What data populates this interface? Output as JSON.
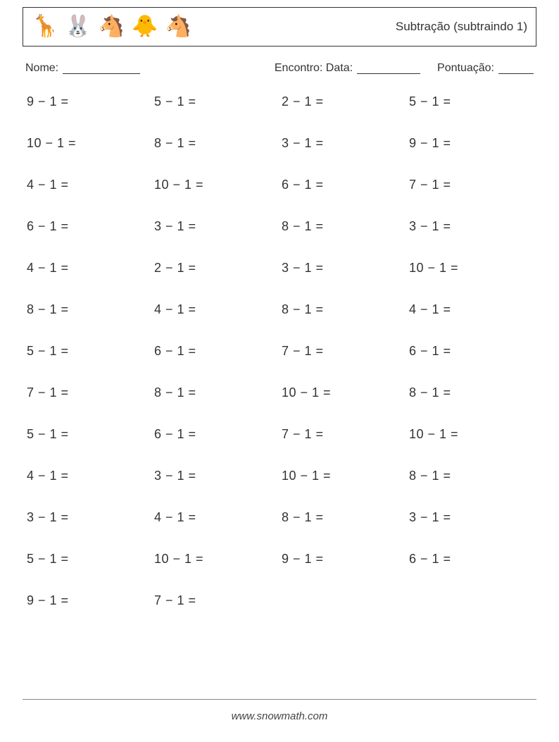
{
  "header": {
    "animals": [
      "🦒",
      "🐰",
      "🐴",
      "🐥",
      "🐴"
    ],
    "title": "Subtração (subtraindo 1)"
  },
  "meta": {
    "name_label": "Nome:",
    "date_label": "Encontro: Data:",
    "score_label": "Pontuação:"
  },
  "style": {
    "font_size_problem": 18,
    "font_size_title": 17,
    "font_size_meta": 16,
    "text_color": "#333333",
    "border_color": "#333333",
    "columns": 4,
    "rows": 13,
    "row_gap": 38
  },
  "problems": [
    "9 − 1 =",
    "5 − 1 =",
    "2 − 1 =",
    "5 − 1 =",
    "10 − 1 =",
    "8 − 1 =",
    "3 − 1 =",
    "9 − 1 =",
    "4 − 1 =",
    "10 − 1 =",
    "6 − 1 =",
    "7 − 1 =",
    "6 − 1 =",
    "3 − 1 =",
    "8 − 1 =",
    "3 − 1 =",
    "4 − 1 =",
    "2 − 1 =",
    "3 − 1 =",
    "10 − 1 =",
    "8 − 1 =",
    "4 − 1 =",
    "8 − 1 =",
    "4 − 1 =",
    "5 − 1 =",
    "6 − 1 =",
    "7 − 1 =",
    "6 − 1 =",
    "7 − 1 =",
    "8 − 1 =",
    "10 − 1 =",
    "8 − 1 =",
    "5 − 1 =",
    "6 − 1 =",
    "7 − 1 =",
    "10 − 1 =",
    "4 − 1 =",
    "3 − 1 =",
    "10 − 1 =",
    "8 − 1 =",
    "3 − 1 =",
    "4 − 1 =",
    "8 − 1 =",
    "3 − 1 =",
    "5 − 1 =",
    "10 − 1 =",
    "9 − 1 =",
    "6 − 1 =",
    "9 − 1 =",
    "7 − 1 ="
  ],
  "footer": {
    "url": "www.snowmath.com"
  }
}
